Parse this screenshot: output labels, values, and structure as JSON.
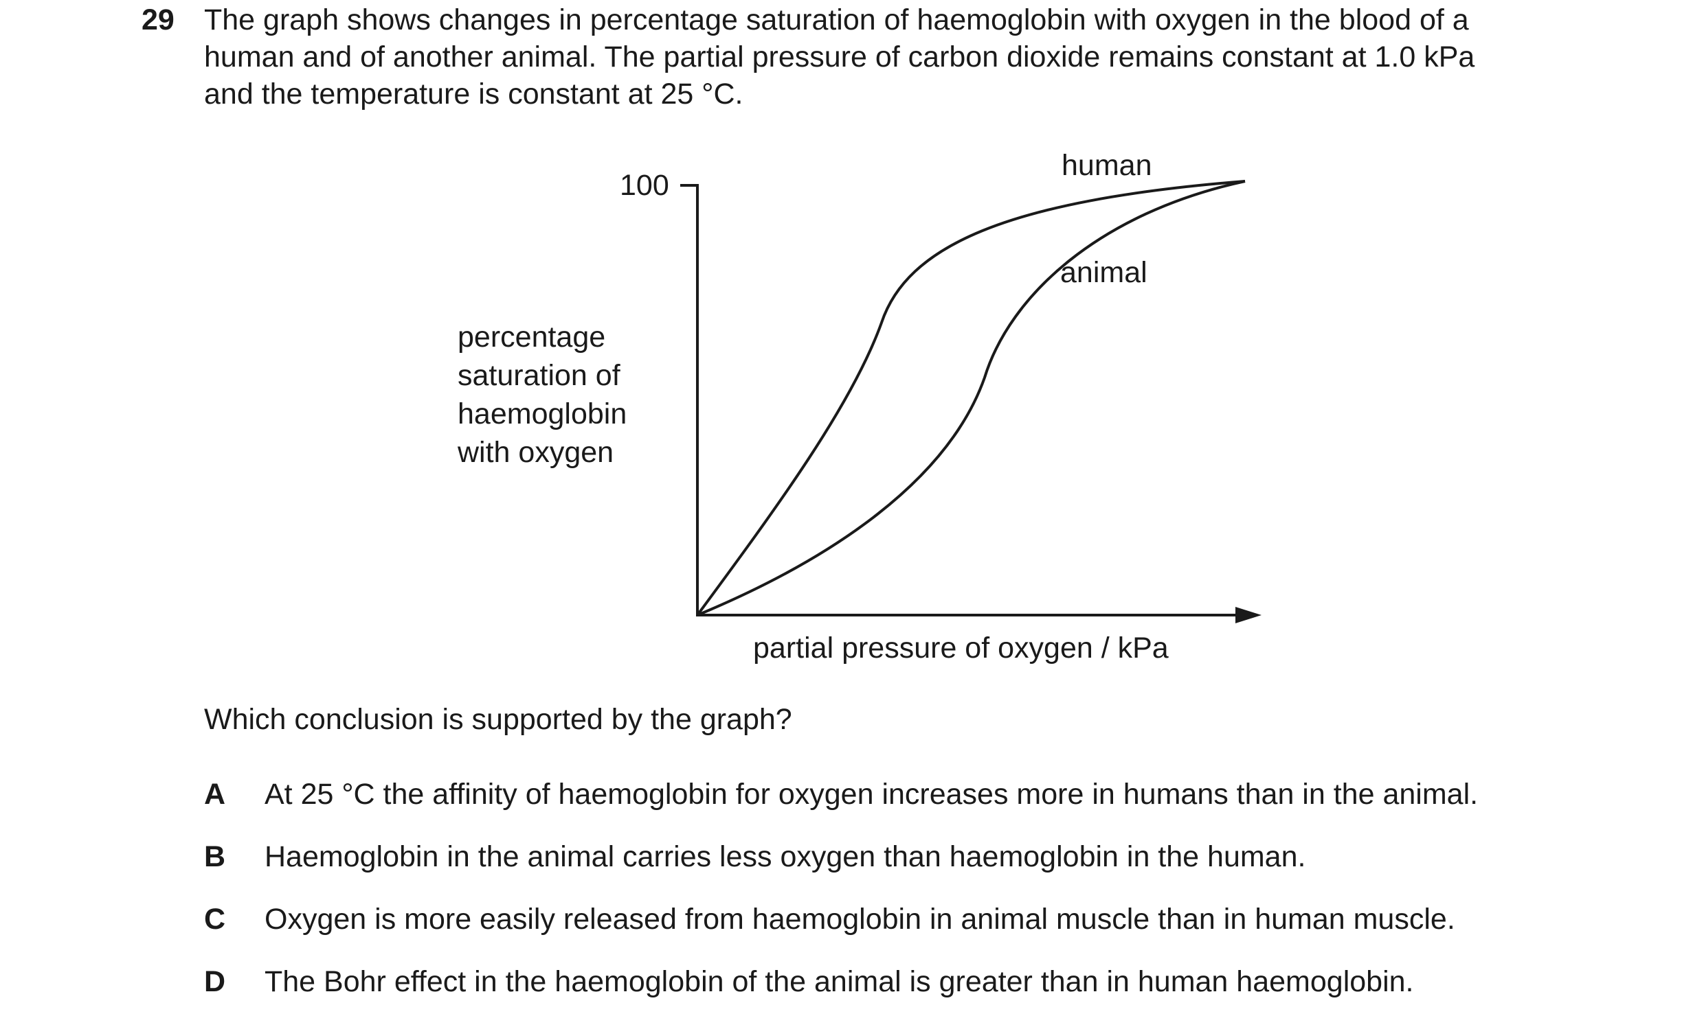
{
  "question": {
    "number": "29",
    "stem_lines": [
      "The graph shows changes in percentage saturation of haemoglobin with oxygen in the blood of a",
      "human and of another animal. The partial pressure of carbon dioxide remains constant at 1.0 kPa",
      "and the temperature is constant at 25 °C."
    ],
    "prompt": "Which conclusion is supported by the graph?",
    "options": [
      {
        "letter": "A",
        "text": "At 25 °C the affinity of haemoglobin for oxygen increases more in humans than in the animal."
      },
      {
        "letter": "B",
        "text": "Haemoglobin in the animal carries less oxygen than haemoglobin in the human."
      },
      {
        "letter": "C",
        "text": "Oxygen is more easily released from haemoglobin in animal muscle than in human muscle."
      },
      {
        "letter": "D",
        "text": "The Bohr effect in the haemoglobin of the animal is greater than in human haemoglobin."
      }
    ]
  },
  "graph": {
    "y_tick_label": "100",
    "y_axis_label_lines": [
      "percentage",
      "saturation of",
      "haemoglobin",
      "with oxygen"
    ],
    "x_axis_label": "partial pressure of oxygen / kPa",
    "curve_labels": {
      "human": "human",
      "animal": "animal"
    },
    "colors": {
      "ink": "#1a1a1a"
    }
  }
}
